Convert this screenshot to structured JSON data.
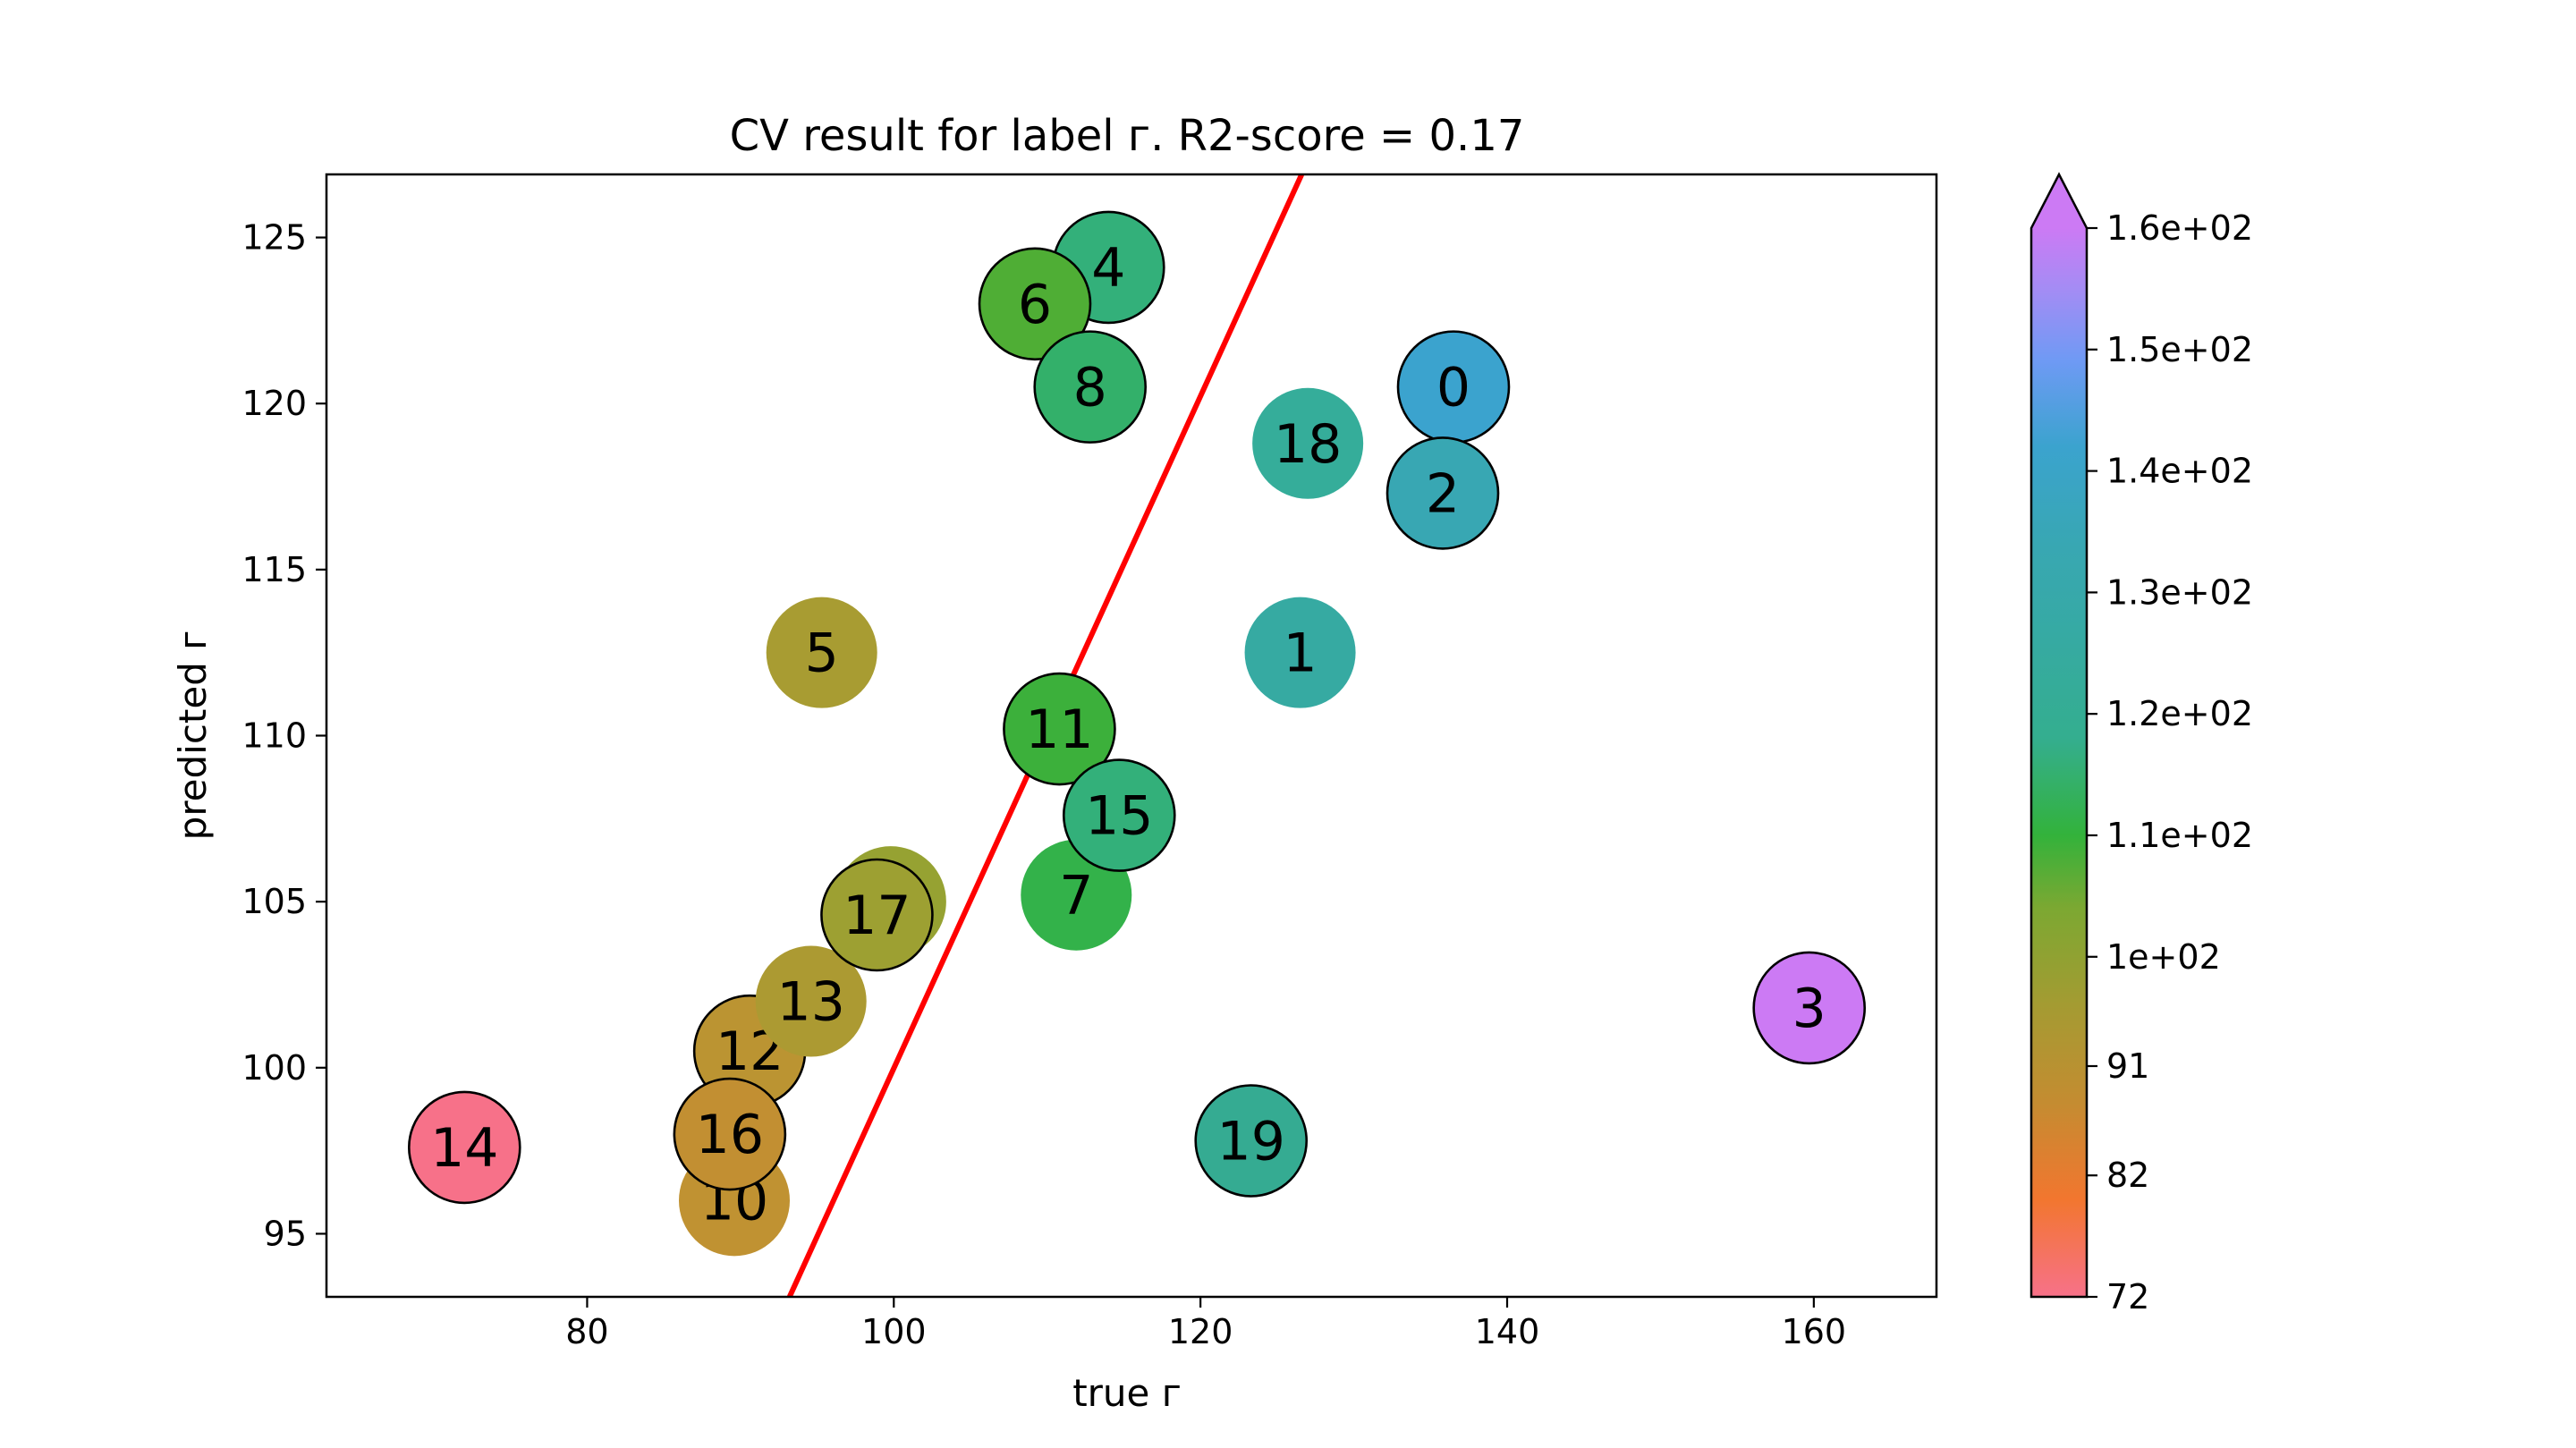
{
  "chart_data": {
    "type": "scatter",
    "title": "CV result for label г. R2-score = 0.17",
    "xlabel": "true г",
    "ylabel": "predicted г",
    "xlim": [
      63,
      168
    ],
    "ylim": [
      93.1,
      126.9
    ],
    "xticks": [
      80,
      100,
      120,
      140,
      160
    ],
    "yticks": [
      95,
      100,
      105,
      110,
      115,
      120,
      125
    ],
    "grid": false,
    "fit_line": {
      "color": "#ff0000",
      "points": [
        [
          93.2,
          93.1
        ],
        [
          126.6,
          126.9
        ]
      ]
    },
    "colorbar": {
      "min": 72,
      "max": 160,
      "extend": "max",
      "tick_values": [
        72,
        82,
        91,
        100,
        110,
        120,
        130,
        140,
        150,
        160
      ],
      "tick_labels": [
        "72",
        "82",
        "91",
        "1e+02",
        "1.1e+02",
        "1.2e+02",
        "1.3e+02",
        "1.4e+02",
        "1.5e+02",
        "1.6e+02"
      ],
      "stops": [
        {
          "v": 72,
          "color": "#f77189"
        },
        {
          "v": 80,
          "color": "#f2762f"
        },
        {
          "v": 88,
          "color": "#c48c31"
        },
        {
          "v": 96,
          "color": "#a49b32"
        },
        {
          "v": 104,
          "color": "#7ca832"
        },
        {
          "v": 110,
          "color": "#33b23b"
        },
        {
          "v": 118,
          "color": "#34ae8f"
        },
        {
          "v": 126,
          "color": "#36aaa2"
        },
        {
          "v": 134,
          "color": "#38a7b3"
        },
        {
          "v": 142,
          "color": "#3ba3ce"
        },
        {
          "v": 149,
          "color": "#6e9af4"
        },
        {
          "v": 155,
          "color": "#a48cf4"
        },
        {
          "v": 160,
          "color": "#cc7af4"
        }
      ]
    },
    "points": [
      {
        "label": "0",
        "x": 136.5,
        "y": 120.5,
        "color": "#3ba3ce",
        "edge": true
      },
      {
        "label": "1",
        "x": 126.5,
        "y": 112.5,
        "color": "#36aaa2",
        "edge": false
      },
      {
        "label": "2",
        "x": 135.8,
        "y": 117.3,
        "color": "#38a7b3",
        "edge": true
      },
      {
        "label": "3",
        "x": 159.7,
        "y": 101.8,
        "color": "#cc7af4",
        "edge": true
      },
      {
        "label": "4",
        "x": 114.0,
        "y": 124.1,
        "color": "#33b07a",
        "edge": true
      },
      {
        "label": "5",
        "x": 95.3,
        "y": 112.5,
        "color": "#a89c32",
        "edge": false
      },
      {
        "label": "6",
        "x": 109.2,
        "y": 123.0,
        "color": "#4fae35",
        "edge": true
      },
      {
        "label": "7",
        "x": 111.9,
        "y": 105.2,
        "color": "#33b24a",
        "edge": false
      },
      {
        "label": "8",
        "x": 112.8,
        "y": 120.5,
        "color": "#33b06a",
        "edge": true
      },
      {
        "label": "9",
        "x": 99.8,
        "y": 105.0,
        "color": "#96a232",
        "edge": false
      },
      {
        "label": "10",
        "x": 89.6,
        "y": 96.0,
        "color": "#c09232",
        "edge": false
      },
      {
        "label": "11",
        "x": 110.8,
        "y": 110.2,
        "color": "#3cb03b",
        "edge": true
      },
      {
        "label": "12",
        "x": 90.6,
        "y": 100.5,
        "color": "#bb9432",
        "edge": true
      },
      {
        "label": "13",
        "x": 94.6,
        "y": 102.0,
        "color": "#ac9a32",
        "edge": false
      },
      {
        "label": "14",
        "x": 72.0,
        "y": 97.6,
        "color": "#f77189",
        "edge": true
      },
      {
        "label": "15",
        "x": 114.7,
        "y": 107.6,
        "color": "#33b07a",
        "edge": true
      },
      {
        "label": "16",
        "x": 89.3,
        "y": 98.0,
        "color": "#c28f32",
        "edge": true
      },
      {
        "label": "17",
        "x": 98.9,
        "y": 104.6,
        "color": "#9da032",
        "edge": true
      },
      {
        "label": "18",
        "x": 127.0,
        "y": 118.8,
        "color": "#35ad9a",
        "edge": false
      },
      {
        "label": "19",
        "x": 123.3,
        "y": 97.8,
        "color": "#35ab92",
        "edge": true
      }
    ]
  }
}
